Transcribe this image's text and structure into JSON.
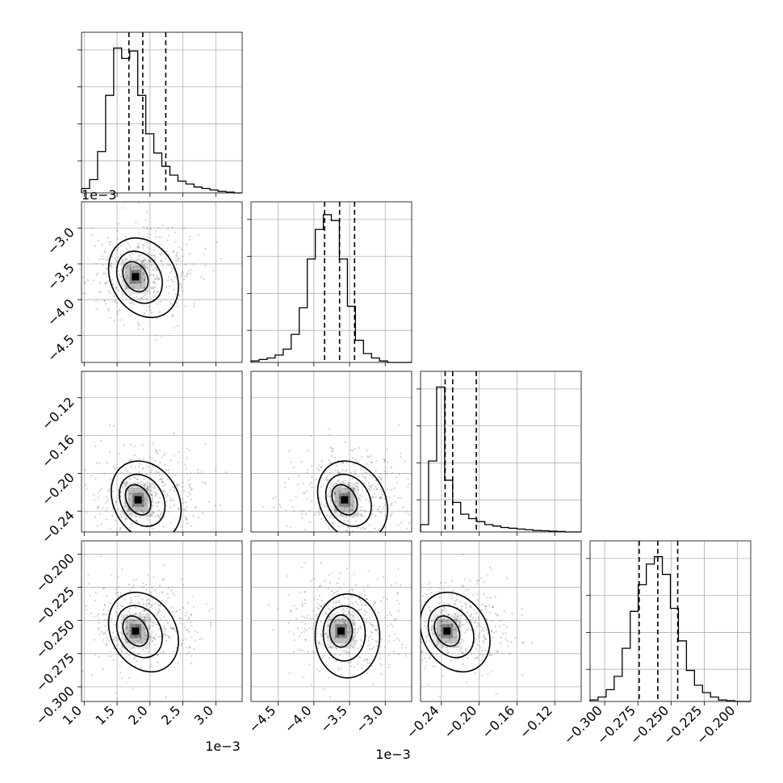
{
  "chart_data": {
    "type": "corner",
    "grid": true,
    "offset_labels": {
      "p0_x": "1e−3",
      "p0_y": "1e−3",
      "p1_x": "1e−3"
    },
    "parameters": [
      {
        "range": [
          0.96,
          3.4
        ],
        "ticks": [
          "1.0",
          "1.5",
          "2.0",
          "2.5",
          "3.0"
        ],
        "tick_values": [
          1.0,
          1.5,
          2.0,
          2.5,
          3.0
        ]
      },
      {
        "range": [
          -4.88,
          -2.63
        ],
        "ticks": [
          "−4.5",
          "−4.0",
          "−3.5",
          "−3.0"
        ],
        "tick_values": [
          -4.5,
          -4.0,
          -3.5,
          -3.0
        ]
      },
      {
        "range": [
          -0.262,
          -0.092
        ],
        "ticks": [
          "−0.24",
          "−0.20",
          "−0.16",
          "−0.12"
        ],
        "tick_values": [
          -0.24,
          -0.2,
          -0.16,
          -0.12
        ]
      },
      {
        "range": [
          -0.311,
          -0.19
        ],
        "ticks": [
          "−0.300",
          "−0.275",
          "−0.250",
          "−0.225",
          "−0.200"
        ],
        "tick_values": [
          -0.3,
          -0.275,
          -0.25,
          -0.225,
          -0.2
        ]
      }
    ],
    "quantiles": [
      [
        1.68,
        1.89,
        2.24
      ],
      [
        -3.85,
        -3.64,
        -3.43
      ],
      [
        -0.236,
        -0.228,
        -0.203
      ],
      [
        -0.274,
        -0.26,
        -0.245
      ]
    ],
    "histograms": [
      {
        "counts": [
          0.03,
          0.09,
          0.28,
          0.66,
          0.98,
          0.91,
          0.96,
          0.66,
          0.4,
          0.27,
          0.18,
          0.12,
          0.08,
          0.06,
          0.04,
          0.03,
          0.02,
          0.01,
          0.005,
          0.0
        ]
      },
      {
        "counts": [
          0.01,
          0.02,
          0.03,
          0.05,
          0.09,
          0.19,
          0.37,
          0.7,
          0.9,
          1.0,
          0.96,
          0.7,
          0.38,
          0.15,
          0.06,
          0.03,
          0.01,
          0.0,
          0.0,
          0.0
        ]
      },
      {
        "counts": [
          0.05,
          0.48,
          0.98,
          0.35,
          0.2,
          0.12,
          0.09,
          0.07,
          0.05,
          0.04,
          0.03,
          0.025,
          0.02,
          0.015,
          0.01,
          0.008,
          0.005,
          0.003,
          0.0,
          0.0
        ]
      },
      {
        "counts": [
          0.01,
          0.03,
          0.08,
          0.17,
          0.36,
          0.61,
          0.79,
          0.93,
          0.98,
          0.86,
          0.63,
          0.41,
          0.21,
          0.11,
          0.06,
          0.03,
          0.01,
          0.005,
          0.0,
          0.0
        ]
      }
    ],
    "density_peaks": [
      {
        "row": 1,
        "col": 0,
        "x": 1.78,
        "y": -3.68
      },
      {
        "row": 2,
        "col": 0,
        "x": 1.82,
        "y": -0.228
      },
      {
        "row": 2,
        "col": 1,
        "x": -3.57,
        "y": -0.228
      },
      {
        "row": 3,
        "col": 0,
        "x": 1.78,
        "y": -0.258
      },
      {
        "row": 3,
        "col": 1,
        "x": -3.62,
        "y": -0.258
      },
      {
        "row": 3,
        "col": 2,
        "x": -0.234,
        "y": -0.258
      }
    ]
  }
}
